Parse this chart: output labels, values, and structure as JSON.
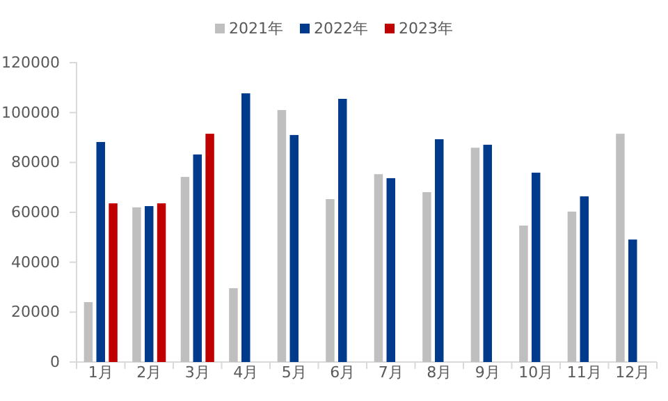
{
  "chart_data": {
    "type": "bar",
    "categories": [
      "1月",
      "2月",
      "3月",
      "4月",
      "5月",
      "6月",
      "7月",
      "8月",
      "9月",
      "10月",
      "11月",
      "12月"
    ],
    "series": [
      {
        "name": "2021年",
        "color": "#bfbfbf",
        "values": [
          24000,
          62000,
          74200,
          29600,
          101000,
          65300,
          75300,
          68100,
          85900,
          54700,
          60300,
          91500
        ]
      },
      {
        "name": "2022年",
        "color": "#003a8c",
        "values": [
          88200,
          62500,
          83200,
          107700,
          91000,
          105500,
          73700,
          89300,
          87100,
          75900,
          66400,
          49100
        ]
      },
      {
        "name": "2023年",
        "color": "#c00000",
        "values": [
          63600,
          63600,
          91500,
          null,
          null,
          null,
          null,
          null,
          null,
          null,
          null,
          null
        ]
      }
    ],
    "ylim": [
      0,
      120000
    ],
    "yticks": [
      0,
      20000,
      40000,
      60000,
      80000,
      100000,
      120000
    ],
    "grid": false,
    "legend": "top"
  }
}
